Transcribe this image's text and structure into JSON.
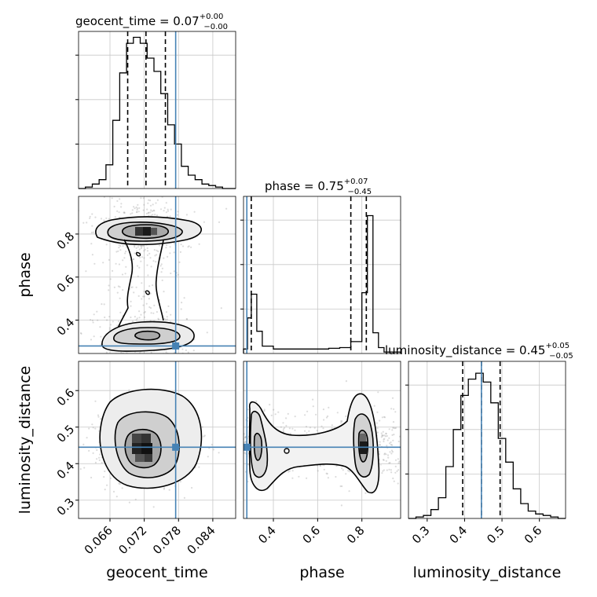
{
  "chart_data": {
    "type": "corner",
    "parameters": [
      "geocent_time",
      "phase",
      "luminosity_distance"
    ],
    "truth": {
      "geocent_time": 0.0775,
      "phase": 0.28,
      "luminosity_distance": 0.445
    },
    "truth_color": "#4682b4",
    "grid": true,
    "diagonal": [
      {
        "param": "geocent_time",
        "title": {
          "main": "geocent_time = 0.07",
          "sup": "+0.00",
          "sub": "−0.00"
        },
        "xlim": [
          0.0605,
          0.088
        ],
        "ylim": [
          0,
          1.06
        ],
        "ytick_positions": [
          0.3,
          0.6,
          0.9
        ],
        "bin_edges": [
          0.0605,
          0.0617,
          0.0629,
          0.0641,
          0.0653,
          0.0665,
          0.0677,
          0.0689,
          0.0701,
          0.0713,
          0.0725,
          0.0737,
          0.0749,
          0.0761,
          0.0773,
          0.0785,
          0.0797,
          0.0809,
          0.0821,
          0.0833,
          0.0845,
          0.0857,
          0.0869,
          0.088
        ],
        "counts": [
          0.0,
          0.01,
          0.03,
          0.06,
          0.16,
          0.46,
          0.78,
          0.98,
          1.02,
          0.98,
          0.88,
          0.79,
          0.64,
          0.43,
          0.3,
          0.15,
          0.09,
          0.06,
          0.03,
          0.02,
          0.01,
          0.0,
          0.0
        ],
        "quantiles": [
          0.0691,
          0.0723,
          0.0757
        ]
      },
      {
        "param": "phase",
        "title": {
          "main": "phase = 0.75",
          "sup": "+0.07",
          "sub": "−0.45"
        },
        "xlim": [
          0.265,
          0.975
        ],
        "ylim": [
          0,
          1.06
        ],
        "ytick_positions": [
          0.3,
          0.6,
          0.9
        ],
        "bin_edges": [
          0.265,
          0.283,
          0.3,
          0.325,
          0.35,
          0.4,
          0.45,
          0.5,
          0.55,
          0.6,
          0.65,
          0.7,
          0.75,
          0.8,
          0.825,
          0.85,
          0.875,
          0.9,
          0.975
        ],
        "counts": [
          0.03,
          0.24,
          0.4,
          0.15,
          0.05,
          0.03,
          0.03,
          0.03,
          0.03,
          0.03,
          0.035,
          0.04,
          0.08,
          0.41,
          0.93,
          0.14,
          0.04,
          0.01
        ],
        "quantiles": [
          0.3,
          0.75,
          0.82
        ]
      },
      {
        "param": "luminosity_distance",
        "title": {
          "main": "luminosity_distance = 0.45",
          "sup": "+0.05",
          "sub": "−0.05"
        },
        "xlim": [
          0.25,
          0.67
        ],
        "ylim": [
          0,
          1.06
        ],
        "ytick_positions": [
          0.3,
          0.6,
          0.9
        ],
        "bin_edges": [
          0.25,
          0.27,
          0.29,
          0.31,
          0.33,
          0.35,
          0.37,
          0.39,
          0.41,
          0.43,
          0.45,
          0.47,
          0.49,
          0.51,
          0.53,
          0.55,
          0.57,
          0.59,
          0.61,
          0.63,
          0.65,
          0.67
        ],
        "counts": [
          0.0,
          0.01,
          0.02,
          0.06,
          0.14,
          0.35,
          0.6,
          0.83,
          0.94,
          0.98,
          0.92,
          0.78,
          0.54,
          0.38,
          0.2,
          0.1,
          0.05,
          0.03,
          0.02,
          0.01,
          0.0
        ],
        "quantiles": [
          0.395,
          0.445,
          0.495
        ]
      }
    ],
    "offdiagonal": [
      {
        "x": "geocent_time",
        "y": "phase",
        "xlim": [
          0.0605,
          0.088
        ],
        "ylim": [
          0.245,
          0.975
        ],
        "modes": [
          {
            "x": 0.0718,
            "y": 0.82
          },
          {
            "x": 0.0714,
            "y": 0.3
          }
        ]
      },
      {
        "x": "geocent_time",
        "y": "luminosity_distance",
        "xlim": [
          0.0605,
          0.088
        ],
        "ylim": [
          0.25,
          0.68
        ],
        "modes": [
          {
            "x": 0.0722,
            "y": 0.445
          }
        ]
      },
      {
        "x": "phase",
        "y": "luminosity_distance",
        "xlim": [
          0.265,
          0.975
        ],
        "ylim": [
          0.25,
          0.68
        ],
        "modes": [
          {
            "x": 0.3,
            "y": 0.46
          },
          {
            "x": 0.8,
            "y": 0.45
          }
        ]
      }
    ],
    "axis_ticks": {
      "geocent_time": [
        "0.066",
        "0.072",
        "0.078",
        "0.084"
      ],
      "phase": [
        "0.4",
        "0.6",
        "0.8"
      ],
      "luminosity_distance": [
        "0.3",
        "0.4",
        "0.5",
        "0.6"
      ]
    },
    "axis_labels": {
      "x": [
        "geocent_time",
        "phase",
        "luminosity_distance"
      ],
      "y": [
        "phase",
        "luminosity_distance"
      ]
    }
  }
}
